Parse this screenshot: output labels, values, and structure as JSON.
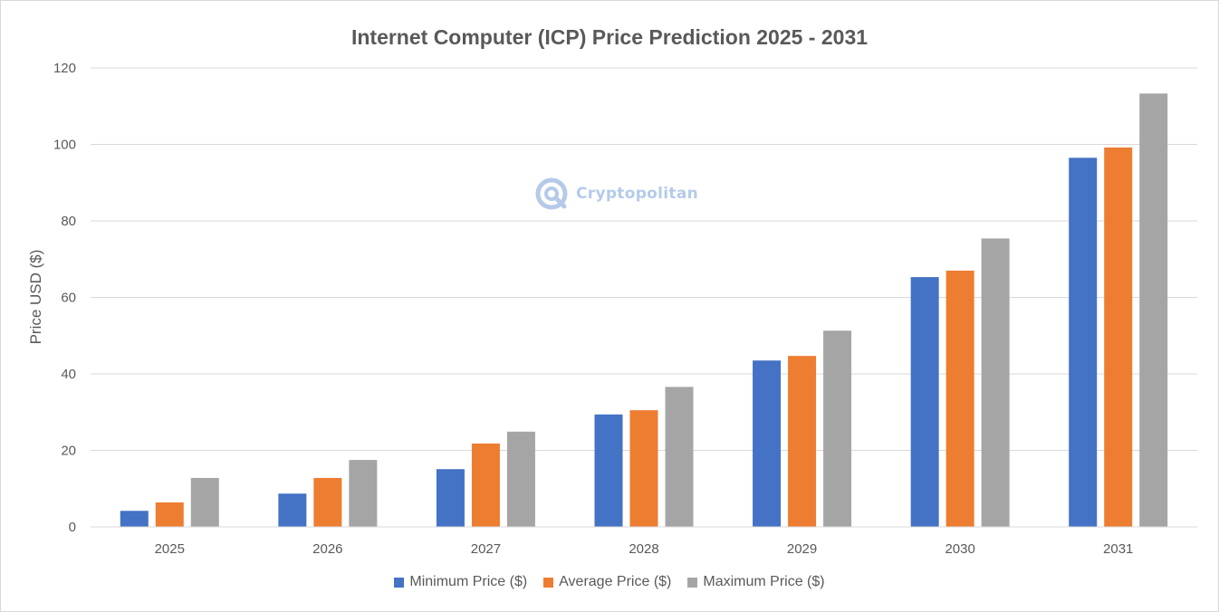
{
  "chart_data": {
    "type": "bar",
    "title": "Internet Computer (ICP) Price Prediction 2025 - 2031",
    "xlabel": "",
    "ylabel": "Price USD ($)",
    "ylim": [
      0,
      120
    ],
    "yticks": [
      0,
      20,
      40,
      60,
      80,
      100,
      120
    ],
    "grid": true,
    "legend_position": "bottom",
    "categories": [
      "2025",
      "2026",
      "2027",
      "2028",
      "2029",
      "2030",
      "2031"
    ],
    "series": [
      {
        "name": "Minimum Price ($)",
        "color": "#4472c4",
        "values": [
          4.2,
          8.7,
          15.1,
          29.4,
          43.5,
          65.3,
          96.5
        ]
      },
      {
        "name": "Average Price ($)",
        "color": "#ed7d31",
        "values": [
          6.4,
          12.8,
          21.8,
          30.5,
          44.7,
          67.0,
          99.2
        ]
      },
      {
        "name": "Maximum Price ($)",
        "color": "#a5a5a5",
        "values": [
          12.8,
          17.5,
          24.9,
          36.6,
          51.3,
          75.4,
          113.3
        ]
      }
    ]
  },
  "watermark": {
    "text": "Cryptopolitan",
    "icon": "cryptopolitan-logo-icon"
  }
}
